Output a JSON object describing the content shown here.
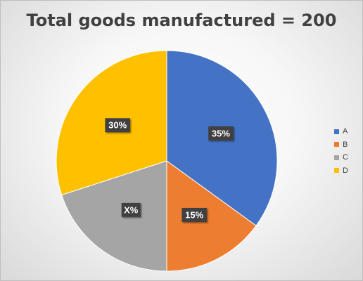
{
  "chart_data": {
    "type": "pie",
    "title": "Total goods manufactured = 200",
    "categories": [
      "A",
      "B",
      "C",
      "D"
    ],
    "values": [
      35,
      15,
      20,
      30
    ],
    "data_labels": [
      "35%",
      "15%",
      "X%",
      "30%"
    ],
    "colors": [
      "#4472C4",
      "#ED7D31",
      "#A5A5A5",
      "#FFC000"
    ],
    "legend_position": "right"
  }
}
